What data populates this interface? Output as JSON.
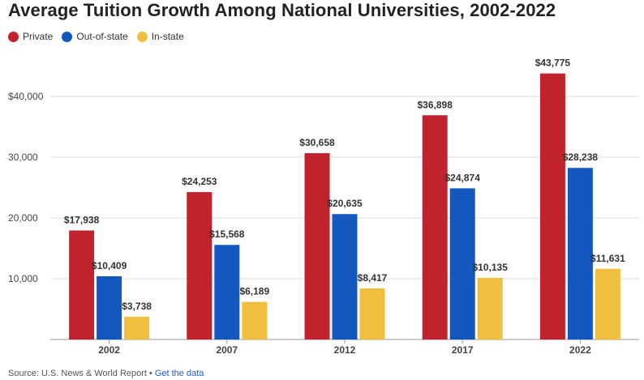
{
  "chart_data": {
    "type": "bar",
    "title": "Average Tuition Growth Among National Universities, 2002-2022",
    "categories": [
      "2002",
      "2007",
      "2012",
      "2017",
      "2022"
    ],
    "series": [
      {
        "name": "Private",
        "color": "#c0232c",
        "values": [
          17938,
          24253,
          30658,
          36898,
          43775
        ],
        "labels": [
          "$17,938",
          "$24,253",
          "$30,658",
          "$36,898",
          "$43,775"
        ]
      },
      {
        "name": "Out-of-state",
        "color": "#1458bf",
        "values": [
          10409,
          15568,
          20635,
          24874,
          28238
        ],
        "labels": [
          "$10,409",
          "$15,568",
          "$20,635",
          "$24,874",
          "$28,238"
        ]
      },
      {
        "name": "In-state",
        "color": "#f1bf3f",
        "values": [
          3738,
          6189,
          8417,
          10135,
          11631
        ],
        "labels": [
          "$3,738",
          "$6,189",
          "$8,417",
          "$10,135",
          "$11,631"
        ]
      }
    ],
    "y_ticks": [
      {
        "value": 10000,
        "label": "10,000"
      },
      {
        "value": 20000,
        "label": "20,000"
      },
      {
        "value": 30000,
        "label": "30,000"
      },
      {
        "value": 40000,
        "label": "$40,000"
      }
    ],
    "ylim": [
      0,
      45000
    ],
    "grid": true,
    "legend_position": "top-left"
  },
  "footer": {
    "source": "Source: U.S. News & World Report",
    "separator": "•",
    "link": "Get the data"
  }
}
